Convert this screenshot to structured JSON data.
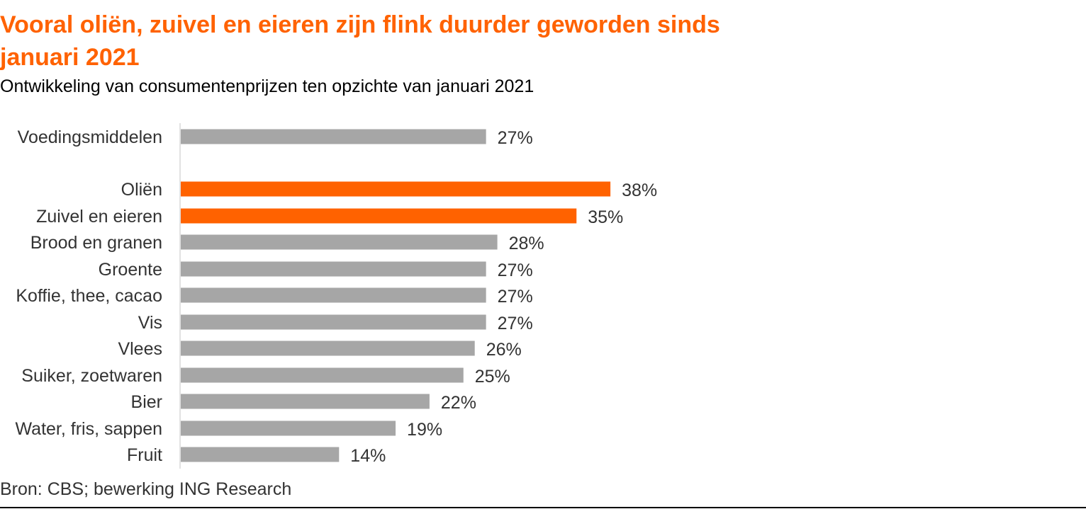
{
  "chart_data": {
    "type": "bar",
    "orientation": "horizontal",
    "title_lines": [
      "Vooral oliën, zuivel en eieren zijn flink duurder geworden sinds",
      "januari 2021"
    ],
    "subtitle": "Ontwikkeling van consumentenprijzen ten opzichte van januari 2021",
    "source": "Bron: CBS; bewerking ING Research",
    "categories": [
      "Voedingsmiddelen",
      "Oliën",
      "Zuivel en eieren",
      "Brood en granen",
      "Groente",
      "Koffie, thee, cacao",
      "Vis",
      "Vlees",
      "Suiker, zoetwaren",
      "Bier",
      "Water, fris, sappen",
      "Fruit"
    ],
    "values": [
      27,
      38,
      35,
      28,
      27,
      27,
      27,
      26,
      25,
      22,
      19,
      14
    ],
    "value_labels": [
      "27%",
      "38%",
      "35%",
      "28%",
      "27%",
      "27%",
      "27%",
      "26%",
      "25%",
      "22%",
      "19%",
      "14%"
    ],
    "highlighted": [
      "Oliën",
      "Zuivel en eieren"
    ],
    "colors": {
      "default": "#A6A6A6",
      "highlight": "#FF6200",
      "title": "#FF6200"
    },
    "grid": false,
    "xlim": [
      0,
      40
    ]
  }
}
